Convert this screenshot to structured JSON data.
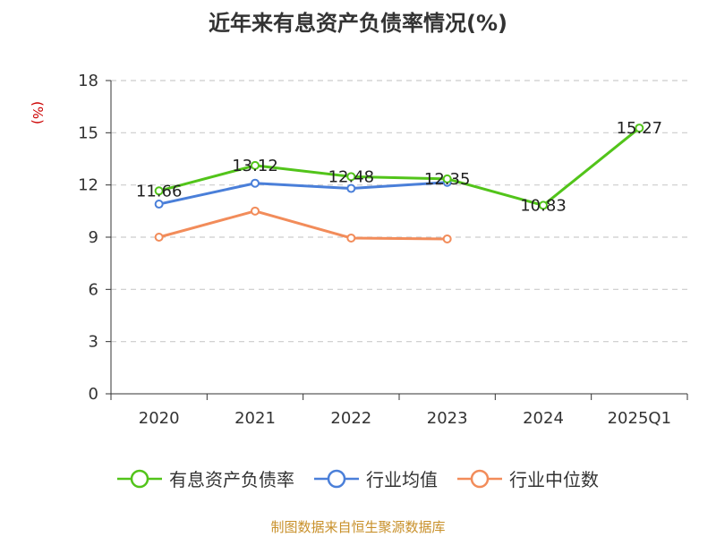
{
  "chart_data": {
    "type": "line",
    "title": "近年来有息资产负债率情况(%)",
    "ylabel": "(%)",
    "xlabel": "",
    "categories": [
      "2020",
      "2021",
      "2022",
      "2023",
      "2024",
      "2025Q1"
    ],
    "ylim": [
      0,
      18
    ],
    "yticks": [
      0,
      3,
      6,
      9,
      12,
      15,
      18
    ],
    "grid": true,
    "legend_position": "bottom",
    "series": [
      {
        "name": "有息资产负债率",
        "color": "#52c41a",
        "labeled": true,
        "values": [
          11.66,
          13.12,
          12.48,
          12.35,
          10.83,
          15.27
        ]
      },
      {
        "name": "行业均值",
        "color": "#4a7fd9",
        "labeled": false,
        "values": [
          10.9,
          12.1,
          11.8,
          12.15,
          null,
          null
        ]
      },
      {
        "name": "行业中位数",
        "color": "#f28c5a",
        "labeled": false,
        "values": [
          9.0,
          10.5,
          8.95,
          8.9,
          null,
          null
        ]
      }
    ]
  },
  "source": "制图数据来自恒生聚源数据库"
}
